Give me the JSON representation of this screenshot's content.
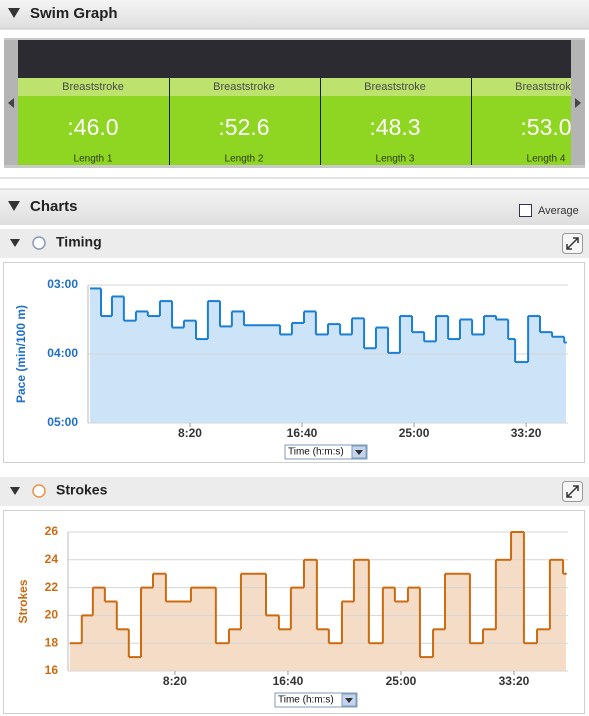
{
  "header": {
    "title": "Swim Graph"
  },
  "lengths": [
    {
      "stroke": "Breaststroke",
      "time": ":46.0",
      "label": "Length 1"
    },
    {
      "stroke": "Breaststroke",
      "time": ":52.6",
      "label": "Length 2"
    },
    {
      "stroke": "Breaststroke",
      "time": ":48.3",
      "label": "Length 3"
    },
    {
      "stroke": "Breaststroke",
      "time": ":53.0",
      "label": "Length 4"
    }
  ],
  "charts_header": {
    "title": "Charts",
    "average": "Average"
  },
  "chart_data": [
    {
      "type": "step",
      "title": "Timing",
      "y_label": "Pace (min/100 m)",
      "x_selector": "Time (h:m:s)",
      "color": "#1a7fd4",
      "fill_color": "#cde3f7",
      "axis_color": "#1f6fc7",
      "y_inverted": true,
      "grid": true,
      "x": [
        54,
        103,
        152,
        205,
        259,
        312,
        366,
        420,
        473,
        527,
        580,
        634,
        687,
        741,
        902,
        955,
        1009,
        1062,
        1116,
        1170,
        1223,
        1277,
        1330,
        1384,
        1437,
        1491,
        1545,
        1598,
        1652,
        1705,
        1759,
        1812,
        1866,
        1920,
        1951,
        2009,
        2062,
        2116,
        2170,
        2178
      ],
      "values": [
        183,
        207,
        190,
        211,
        203,
        207,
        194,
        217,
        211,
        227,
        194,
        216,
        203,
        215,
        223,
        213,
        203,
        223,
        214,
        223,
        209,
        235,
        217,
        239,
        207,
        221,
        229,
        207,
        227,
        210,
        223,
        207,
        210,
        227,
        247,
        207,
        221,
        225,
        230,
        230
      ],
      "xlim": [
        45,
        2187
      ],
      "xticks": [
        {
          "value": 500,
          "label": "8:20"
        },
        {
          "value": 1000,
          "label": "16:40"
        },
        {
          "value": 1500,
          "label": "25:00"
        },
        {
          "value": 2000,
          "label": "33:20"
        }
      ],
      "ylim": [
        180,
        300
      ],
      "yticks": [
        {
          "value": 180,
          "label": "03:00"
        },
        {
          "value": 240,
          "label": "04:00"
        },
        {
          "value": 300,
          "label": "05:00"
        }
      ]
    },
    {
      "type": "step",
      "title": "Strokes",
      "y_label": "Strokes",
      "x_selector": "Time (h:m:s)",
      "color": "#cc6a10",
      "fill_color": "#f5dcc6",
      "axis_color": "#cc6a10",
      "y_inverted": false,
      "grid": true,
      "x": [
        35,
        88,
        137,
        190,
        243,
        296,
        350,
        403,
        460,
        571,
        681,
        739,
        792,
        903,
        960,
        1013,
        1071,
        1128,
        1181,
        1239,
        1292,
        1358,
        1420,
        1473,
        1531,
        1584,
        1642,
        1695,
        1805,
        1863,
        1920,
        1987,
        2044,
        2102,
        2159,
        2217,
        2230
      ],
      "values": [
        18,
        20,
        22,
        21,
        19,
        17,
        22,
        23,
        21,
        22,
        18,
        19,
        23,
        20,
        19,
        22,
        24,
        19,
        18,
        21,
        24,
        18,
        22,
        21,
        22,
        17,
        19,
        23,
        18,
        19,
        24,
        26,
        18,
        19,
        24,
        23,
        23
      ],
      "xlim": [
        27,
        2239
      ],
      "xticks": [
        {
          "value": 500,
          "label": "8:20"
        },
        {
          "value": 1000,
          "label": "16:40"
        },
        {
          "value": 1500,
          "label": "25:00"
        },
        {
          "value": 2000,
          "label": "33:20"
        }
      ],
      "ylim": [
        16,
        26
      ],
      "yticks": [
        16,
        18,
        20,
        22,
        24,
        26
      ]
    }
  ]
}
